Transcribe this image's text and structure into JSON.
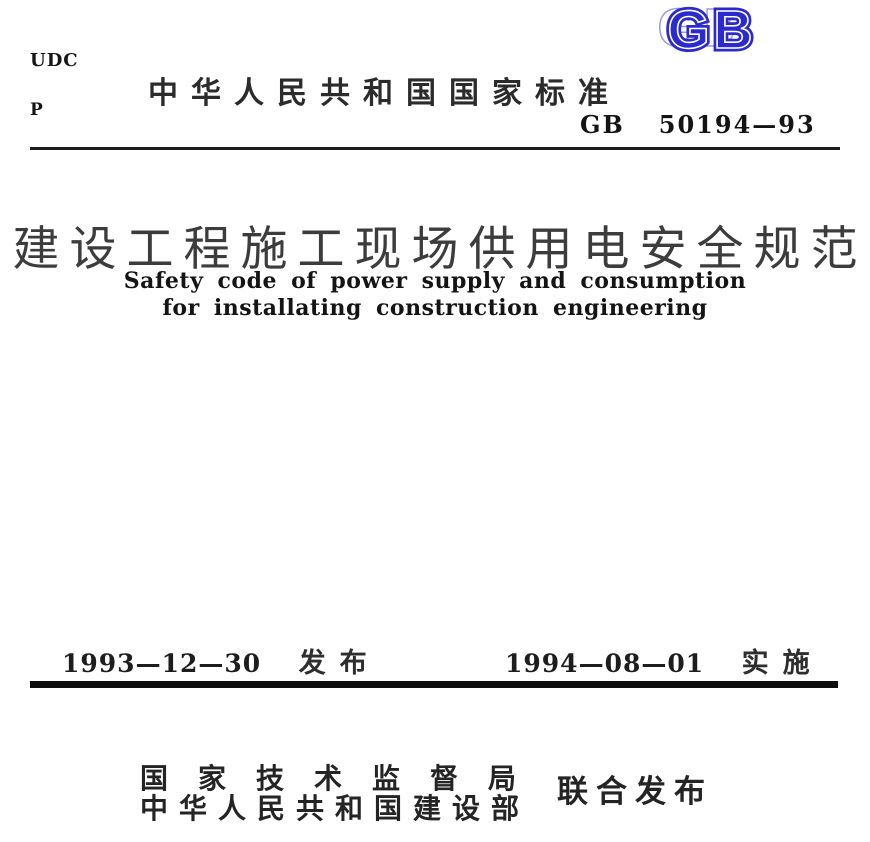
{
  "page": {
    "udc_label": "UDC",
    "p_label": "P",
    "header": {
      "national_standard_title": "中华人民共和国国家标准",
      "gb_logo_text": "GB",
      "standard_code_prefix": "GB",
      "standard_code_number": "50194—93"
    },
    "title": {
      "chinese": "建设工程施工现场供用电安全规范",
      "english_line1": "Safety code of power supply and consumption",
      "english_line2": "for installating construction engineering"
    },
    "dates": {
      "issue_date": "1993—12—30",
      "issue_label": "发布",
      "effective_date": "1994—08—01",
      "effective_label": "实施"
    },
    "publishers": {
      "line1": "国家技术监督局",
      "line2": "中华人民共和国建设部",
      "joint_label": "联合发布"
    },
    "colors": {
      "gb_logo_blue": "#2a2ace",
      "text_black": "#1c1c1c"
    }
  }
}
